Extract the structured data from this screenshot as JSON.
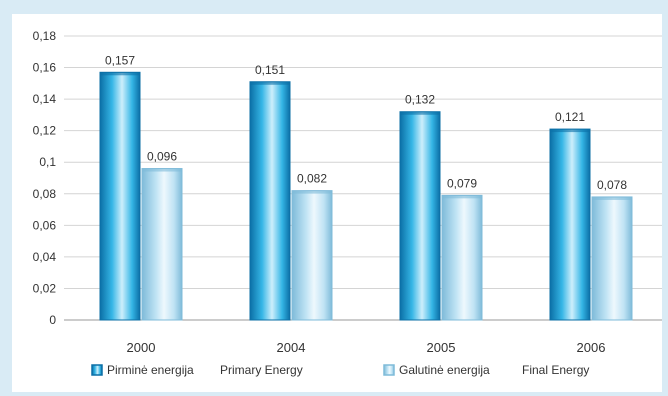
{
  "chart_data": {
    "type": "bar",
    "categories": [
      "2000",
      "2004",
      "2005",
      "2006"
    ],
    "series": [
      {
        "name": "Pirminė energija",
        "name_en": "Primary Energy",
        "values": [
          0.157,
          0.151,
          0.132,
          0.121
        ],
        "labels": [
          "0,157",
          "0,151",
          "0,132",
          "0,121"
        ]
      },
      {
        "name": "Galutinė energija",
        "name_en": "Final Energy",
        "values": [
          0.096,
          0.082,
          0.079,
          0.078
        ],
        "labels": [
          "0,096",
          "0,082",
          "0,079",
          "0,078"
        ]
      }
    ],
    "ylim": [
      0,
      0.18
    ],
    "yticks": [
      0,
      0.02,
      0.04,
      0.06,
      0.08,
      0.1,
      0.12,
      0.14,
      0.16,
      0.18
    ],
    "ytick_labels": [
      "0",
      "0,02",
      "0,04",
      "0,06",
      "0,08",
      "0,1",
      "0,12",
      "0,14",
      "0,16",
      "0,18"
    ],
    "grid": true,
    "legend_position": "bottom",
    "colors": {
      "primary_light": "#cdeefb",
      "primary_mid": "#35b6e6",
      "primary_dark": "#0b6fa6",
      "final_light": "#eef8fd",
      "final_mid": "#bfe3f4",
      "final_dark": "#7fbbd9"
    }
  }
}
